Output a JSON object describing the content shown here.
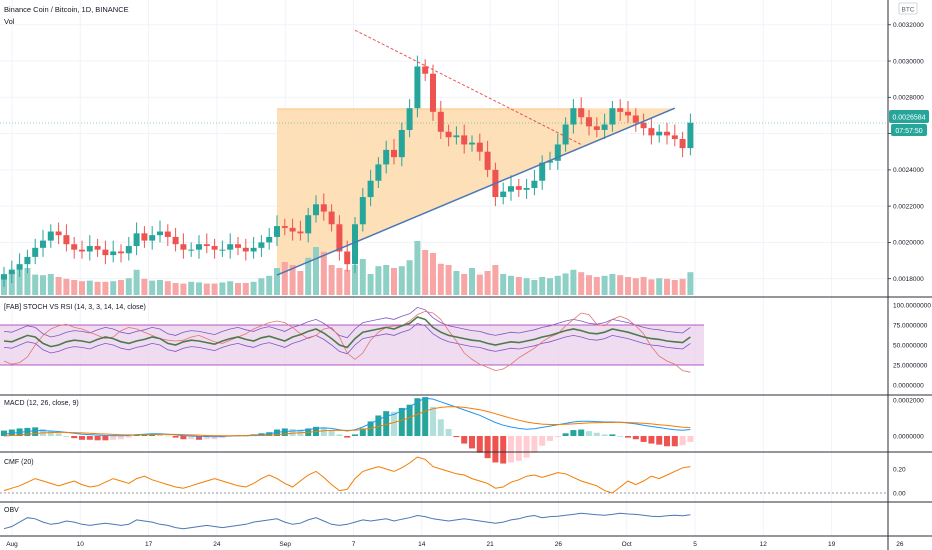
{
  "header": {
    "symbol": "Binance Coin / Bitcoin, 1D, BINANCE",
    "volume_label": "Vol",
    "currency": "BTC"
  },
  "price": {
    "last": "0.0026584",
    "countdown": "07:57:50"
  },
  "colors": {
    "up": "#26a69a",
    "down": "#ef5350",
    "vol_up": "#8fd0c6",
    "vol_down": "#f7a5a5",
    "triangle_fill": "#fdd9ab",
    "trend": "#4a78b5",
    "stoch_band": "#e8cdeb",
    "macd_line": "#2196f3",
    "signal_line": "#f57c00",
    "cmf": "#f57c00",
    "obv": "#4a78b5"
  },
  "price_axis": {
    "ticks": [
      "0.0032000",
      "0.0030000",
      "0.0028000",
      "0.0026000",
      "0.0024000",
      "0.0022000",
      "0.0020000",
      "0.0018000"
    ]
  },
  "time_axis": {
    "ticks": [
      "Aug",
      "10",
      "17",
      "24",
      "Sep",
      "7",
      "14",
      "21",
      "26",
      "Oct",
      "5",
      "12",
      "19",
      "26",
      "N"
    ]
  },
  "panes": {
    "stoch": {
      "title": "[FAB] STOCH VS RSI (14, 3, 3, 14, 14, close)",
      "ticks": [
        "100.0000000",
        "75.0000000",
        "50.0000000",
        "25.0000000",
        "0.0000000"
      ]
    },
    "macd": {
      "title": "MACD (12, 26, close, 9)",
      "ticks": [
        "0.0002000",
        "0.0000000"
      ]
    },
    "cmf": {
      "title": "CMF (20)",
      "ticks": [
        "0.20",
        "0.00"
      ]
    },
    "obv": {
      "title": "OBV"
    }
  },
  "chart_data": {
    "type": "candlestick",
    "ohlc_close": [
      0.001825,
      0.00185,
      0.00188,
      0.00192,
      0.00197,
      0.00201,
      0.00206,
      0.00204,
      0.00199,
      0.00196,
      0.00195,
      0.00198,
      0.00196,
      0.00193,
      0.00195,
      0.00194,
      0.00198,
      0.00205,
      0.00201,
      0.00204,
      0.00206,
      0.00203,
      0.00199,
      0.00196,
      0.00196,
      0.00199,
      0.00198,
      0.00196,
      0.00196,
      0.00199,
      0.00197,
      0.00195,
      0.00197,
      0.002,
      0.00203,
      0.00209,
      0.00208,
      0.00206,
      0.00205,
      0.00215,
      0.00221,
      0.00217,
      0.0021,
      0.00195,
      0.00188,
      0.0021,
      0.00225,
      0.00234,
      0.00243,
      0.00251,
      0.00247,
      0.00262,
      0.00274,
      0.00297,
      0.00293,
      0.00272,
      0.00261,
      0.00258,
      0.00259,
      0.00254,
      0.00255,
      0.0025,
      0.0024,
      0.00225,
      0.00228,
      0.00231,
      0.00229,
      0.0023,
      0.00234,
      0.00244,
      0.00245,
      0.00254,
      0.00265,
      0.00274,
      0.00269,
      0.00264,
      0.00262,
      0.00265,
      0.00274,
      0.00272,
      0.0027,
      0.00266,
      0.00263,
      0.00259,
      0.00261,
      0.00259,
      0.00257,
      0.00252,
      0.00266
    ],
    "start": "2020-07-31",
    "interval": "1D",
    "ylim": [
      0.00171,
      0.00332
    ],
    "triangle": {
      "x0": "2020-09-04",
      "x1": "2020-10-25",
      "top": 0.00274,
      "bottom_start": 0.00182,
      "bottom_end": 0.00274
    },
    "resistance_line": {
      "from": [
        "2020-09-14",
        0.00317
      ],
      "to": [
        "2020-10-13",
        0.00254
      ]
    },
    "support_line": {
      "from": [
        "2020-09-04",
        0.00182
      ],
      "to": [
        "2020-10-25",
        0.00274
      ]
    },
    "volume": [
      0.3,
      0.38,
      0.5,
      0.45,
      0.34,
      0.33,
      0.35,
      0.3,
      0.27,
      0.25,
      0.23,
      0.24,
      0.22,
      0.22,
      0.23,
      0.25,
      0.28,
      0.42,
      0.27,
      0.24,
      0.25,
      0.23,
      0.2,
      0.19,
      0.22,
      0.21,
      0.19,
      0.19,
      0.21,
      0.23,
      0.2,
      0.2,
      0.22,
      0.28,
      0.32,
      0.45,
      0.55,
      0.5,
      0.4,
      0.62,
      0.8,
      0.72,
      0.5,
      0.45,
      0.42,
      0.5,
      0.6,
      0.35,
      0.48,
      0.5,
      0.45,
      0.48,
      0.58,
      0.9,
      0.75,
      0.7,
      0.52,
      0.5,
      0.4,
      0.35,
      0.45,
      0.34,
      0.4,
      0.5,
      0.35,
      0.32,
      0.3,
      0.28,
      0.25,
      0.3,
      0.28,
      0.32,
      0.36,
      0.42,
      0.38,
      0.33,
      0.3,
      0.32,
      0.35,
      0.33,
      0.3,
      0.28,
      0.3,
      0.26,
      0.28,
      0.27,
      0.25,
      0.27,
      0.38
    ],
    "stoch_k": [
      55,
      54,
      58,
      62,
      60,
      52,
      48,
      50,
      54,
      56,
      55,
      53,
      57,
      60,
      58,
      54,
      52,
      55,
      57,
      60,
      58,
      52,
      50,
      54,
      56,
      55,
      53,
      51,
      55,
      58,
      60,
      57,
      55,
      59,
      61,
      58,
      55,
      60,
      63,
      67,
      70,
      65,
      58,
      50,
      47,
      58,
      66,
      68,
      70,
      72,
      70,
      74,
      77,
      85,
      82,
      72,
      66,
      62,
      60,
      58,
      56,
      55,
      52,
      50,
      52,
      54,
      53,
      55,
      57,
      60,
      62,
      65,
      68,
      70,
      68,
      65,
      64,
      66,
      70,
      68,
      66,
      63,
      60,
      58,
      57,
      55,
      54,
      53,
      60
    ],
    "stoch_rsi": [
      30,
      26,
      28,
      35,
      50,
      62,
      70,
      74,
      76,
      72,
      70,
      66,
      62,
      58,
      60,
      68,
      72,
      70,
      66,
      62,
      58,
      56,
      55,
      56,
      60,
      62,
      58,
      54,
      52,
      56,
      60,
      64,
      70,
      74,
      78,
      80,
      78,
      72,
      64,
      58,
      62,
      70,
      72,
      60,
      40,
      32,
      40,
      56,
      66,
      72,
      74,
      74,
      80,
      88,
      92,
      90,
      82,
      68,
      55,
      40,
      32,
      26,
      22,
      18,
      20,
      26,
      34,
      40,
      46,
      54,
      60,
      64,
      74,
      82,
      90,
      88,
      76,
      74,
      82,
      86,
      82,
      74,
      64,
      48,
      36,
      30,
      26,
      18,
      16
    ],
    "macd": [
      1e-05,
      1.5e-05,
      2e-05,
      2.5e-05,
      3e-05,
      3e-05,
      2.8e-05,
      2.5e-05,
      2e-05,
      1.5e-05,
      1e-05,
      8e-06,
      5e-06,
      3e-06,
      2e-06,
      1e-06,
      3e-06,
      8e-06,
      1e-05,
      1.2e-05,
      1.3e-05,
      1e-05,
      6e-06,
      2e-06,
      0.0,
      -2e-06,
      -3e-06,
      -4e-06,
      -3e-06,
      0.0,
      2e-06,
      3e-06,
      5e-06,
      8e-06,
      1.2e-05,
      2e-05,
      2.5e-05,
      2.8e-05,
      3e-05,
      3.5e-05,
      4.2e-05,
      4.5e-05,
      4.2e-05,
      3.5e-05,
      2.8e-05,
      3.5e-05,
      5e-05,
      7e-05,
      9e-05,
      0.00011,
      0.00012,
      0.00014,
      0.00016,
      0.00019,
      0.00021,
      0.000205,
      0.00019,
      0.000175,
      0.00016,
      0.000145,
      0.00013,
      0.000115,
      9.5e-05,
      7.5e-05,
      6e-05,
      5e-05,
      4.2e-05,
      3.8e-05,
      4e-05,
      4.8e-05,
      5.5e-05,
      6.2e-05,
      7e-05,
      7.8e-05,
      8.2e-05,
      8.2e-05,
      8e-05,
      7.8e-05,
      7.8e-05,
      7.6e-05,
      7.2e-05,
      6.7e-05,
      6e-05,
      5.3e-05,
      4.7e-05,
      4e-05,
      3.5e-05,
      3.2e-05,
      3.6e-05
    ],
    "macd_signal": [
      0.0,
      3e-06,
      6e-06,
      1e-05,
      1.4e-05,
      1.7e-05,
      1.9e-05,
      2e-05,
      2e-05,
      1.9e-05,
      1.7e-05,
      1.5e-05,
      1.3e-05,
      1.1e-05,
      9e-06,
      7e-06,
      6e-06,
      6e-06,
      7e-06,
      8e-06,
      9e-06,
      9e-06,
      9e-06,
      8e-06,
      6e-06,
      5e-06,
      3e-06,
      2e-06,
      1e-06,
      1e-06,
      1e-06,
      2e-06,
      2e-06,
      3e-06,
      5e-06,
      8e-06,
      1.1e-05,
      1.5e-05,
      1.8e-05,
      2.1e-05,
      2.5e-05,
      2.9e-05,
      3.1e-05,
      3.2e-05,
      3.1e-05,
      3.2e-05,
      3.6e-05,
      4.3e-05,
      5.2e-05,
      6.4e-05,
      7.5e-05,
      8.8e-05,
      0.000102,
      0.00012,
      0.000138,
      0.000151,
      0.000159,
      0.000162,
      0.000162,
      0.000159,
      0.000153,
      0.000146,
      0.000136,
      0.000124,
      0.000111,
      9.9e-05,
      8.8e-05,
      7.8e-05,
      7.1e-05,
      6.6e-05,
      6.4e-05,
      6.4e-05,
      6.5e-05,
      6.7e-05,
      7e-05,
      7.3e-05,
      7.4e-05,
      7.5e-05,
      7.5e-05,
      7.6e-05,
      7.5e-05,
      7.3e-05,
      7.1e-05,
      6.7e-05,
      6.3e-05,
      5.9e-05,
      5.4e-05,
      4.9e-05,
      4.7e-05
    ],
    "cmf": [
      0.02,
      0.04,
      0.06,
      0.09,
      0.12,
      0.1,
      0.08,
      0.06,
      0.08,
      0.1,
      0.07,
      0.05,
      0.06,
      0.09,
      0.12,
      0.1,
      0.08,
      0.12,
      0.14,
      0.11,
      0.09,
      0.07,
      0.05,
      0.04,
      0.06,
      0.08,
      0.1,
      0.12,
      0.1,
      0.08,
      0.06,
      0.05,
      0.08,
      0.12,
      0.15,
      0.12,
      0.08,
      0.05,
      0.1,
      0.15,
      0.18,
      0.13,
      0.07,
      0.02,
      0.03,
      0.12,
      0.18,
      0.2,
      0.22,
      0.2,
      0.18,
      0.21,
      0.25,
      0.3,
      0.28,
      0.22,
      0.2,
      0.18,
      0.16,
      0.15,
      0.12,
      0.1,
      0.08,
      0.04,
      0.05,
      0.09,
      0.11,
      0.14,
      0.15,
      0.13,
      0.15,
      0.17,
      0.16,
      0.13,
      0.1,
      0.08,
      0.06,
      0.02,
      0.0,
      0.05,
      0.1,
      0.07,
      0.1,
      0.14,
      0.12,
      0.15,
      0.18,
      0.21,
      0.22
    ],
    "obv": [
      0.15,
      0.25,
      0.45,
      0.65,
      0.6,
      0.45,
      0.35,
      0.4,
      0.5,
      0.45,
      0.35,
      0.3,
      0.35,
      0.4,
      0.35,
      0.3,
      0.35,
      0.55,
      0.5,
      0.45,
      0.35,
      0.3,
      0.2,
      0.15,
      0.2,
      0.25,
      0.3,
      0.25,
      0.2,
      0.25,
      0.3,
      0.35,
      0.45,
      0.5,
      0.55,
      0.6,
      0.45,
      0.35,
      0.4,
      0.55,
      0.65,
      0.5,
      0.35,
      0.3,
      0.35,
      0.45,
      0.55,
      0.5,
      0.55,
      0.6,
      0.5,
      0.58,
      0.65,
      0.75,
      0.7,
      0.6,
      0.55,
      0.5,
      0.55,
      0.6,
      0.55,
      0.5,
      0.45,
      0.4,
      0.45,
      0.55,
      0.6,
      0.7,
      0.75,
      0.65,
      0.7,
      0.72,
      0.76,
      0.8,
      0.85,
      0.82,
      0.78,
      0.76,
      0.8,
      0.85,
      0.82,
      0.8,
      0.76,
      0.72,
      0.7,
      0.74,
      0.76,
      0.74,
      0.78
    ]
  }
}
